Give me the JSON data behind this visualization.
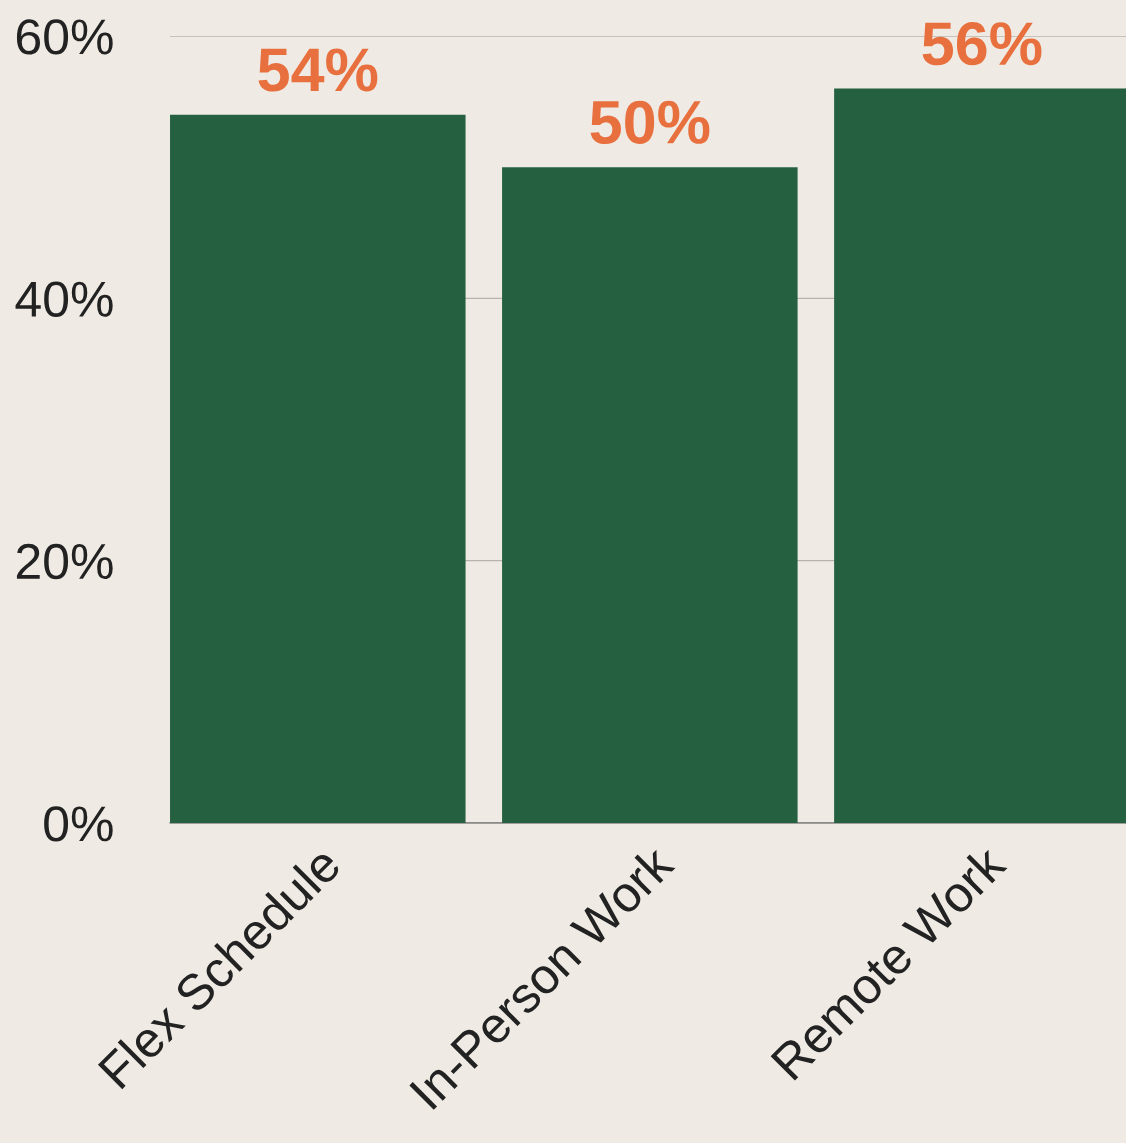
{
  "chart_data": {
    "type": "bar",
    "categories": [
      "Flex Schedule",
      "In-Person Work",
      "Remote Work"
    ],
    "values": [
      54,
      50,
      56
    ],
    "color": "#256040",
    "value_labels": [
      "54%",
      "50%",
      "56%"
    ],
    "ylim": [
      0,
      60
    ],
    "yticks": [
      {
        "value": 0,
        "label": "0%"
      },
      {
        "value": 20,
        "label": "20%"
      },
      {
        "value": 40,
        "label": "40%"
      },
      {
        "value": 60,
        "label": "60%"
      }
    ],
    "grid": "y",
    "legend": false
  }
}
